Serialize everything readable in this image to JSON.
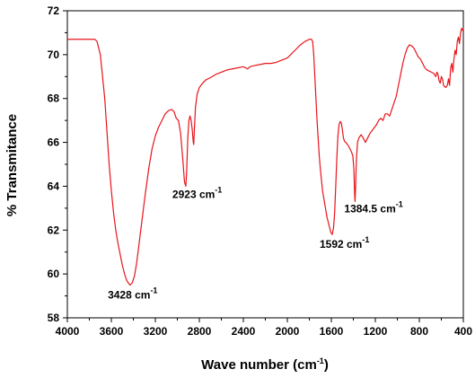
{
  "chart_data": {
    "type": "line",
    "xlabel": "Wave number (cm",
    "xlabel_sup": "-1",
    "xlabel_close": ")",
    "ylabel": "% Transmitance",
    "xlim": [
      4000,
      400
    ],
    "ylim": [
      58,
      72
    ],
    "x_ticks": [
      "4000",
      "3600",
      "3200",
      "2800",
      "2400",
      "2000",
      "1600",
      "1200",
      "800",
      "400"
    ],
    "y_ticks": [
      "58",
      "60",
      "62",
      "64",
      "66",
      "68",
      "70",
      "72"
    ],
    "series": [
      {
        "color": "#e8141b",
        "points": [
          [
            4000,
            70.7
          ],
          [
            3900,
            70.7
          ],
          [
            3800,
            70.7
          ],
          [
            3750,
            70.7
          ],
          [
            3730,
            70.6
          ],
          [
            3700,
            70.0
          ],
          [
            3680,
            69.0
          ],
          [
            3660,
            68.0
          ],
          [
            3640,
            66.5
          ],
          [
            3620,
            65.0
          ],
          [
            3600,
            63.8
          ],
          [
            3580,
            62.8
          ],
          [
            3560,
            62.0
          ],
          [
            3540,
            61.4
          ],
          [
            3520,
            60.9
          ],
          [
            3500,
            60.4
          ],
          [
            3480,
            60.0
          ],
          [
            3460,
            59.7
          ],
          [
            3440,
            59.55
          ],
          [
            3428,
            59.5
          ],
          [
            3410,
            59.6
          ],
          [
            3390,
            59.9
          ],
          [
            3370,
            60.5
          ],
          [
            3350,
            61.3
          ],
          [
            3320,
            62.5
          ],
          [
            3290,
            63.7
          ],
          [
            3260,
            64.8
          ],
          [
            3230,
            65.7
          ],
          [
            3200,
            66.3
          ],
          [
            3170,
            66.7
          ],
          [
            3140,
            67.0
          ],
          [
            3110,
            67.3
          ],
          [
            3080,
            67.45
          ],
          [
            3050,
            67.5
          ],
          [
            3030,
            67.4
          ],
          [
            3010,
            67.1
          ],
          [
            2990,
            67.0
          ],
          [
            2970,
            66.4
          ],
          [
            2950,
            65.2
          ],
          [
            2935,
            64.2
          ],
          [
            2923,
            64.0
          ],
          [
            2915,
            64.7
          ],
          [
            2905,
            66.2
          ],
          [
            2895,
            67.0
          ],
          [
            2885,
            67.2
          ],
          [
            2875,
            67.0
          ],
          [
            2865,
            66.6
          ],
          [
            2855,
            66.0
          ],
          [
            2851,
            65.9
          ],
          [
            2845,
            66.6
          ],
          [
            2835,
            67.6
          ],
          [
            2820,
            68.2
          ],
          [
            2800,
            68.5
          ],
          [
            2770,
            68.7
          ],
          [
            2740,
            68.85
          ],
          [
            2700,
            68.95
          ],
          [
            2650,
            69.1
          ],
          [
            2600,
            69.2
          ],
          [
            2550,
            69.3
          ],
          [
            2500,
            69.35
          ],
          [
            2450,
            69.4
          ],
          [
            2400,
            69.45
          ],
          [
            2360,
            69.35
          ],
          [
            2340,
            69.45
          ],
          [
            2300,
            69.5
          ],
          [
            2250,
            69.55
          ],
          [
            2200,
            69.6
          ],
          [
            2150,
            69.6
          ],
          [
            2100,
            69.65
          ],
          [
            2050,
            69.75
          ],
          [
            2000,
            69.85
          ],
          [
            1960,
            70.05
          ],
          [
            1920,
            70.25
          ],
          [
            1880,
            70.45
          ],
          [
            1840,
            70.6
          ],
          [
            1800,
            70.7
          ],
          [
            1780,
            70.7
          ],
          [
            1770,
            70.6
          ],
          [
            1760,
            70.0
          ],
          [
            1750,
            69.0
          ],
          [
            1740,
            68.0
          ],
          [
            1730,
            67.0
          ],
          [
            1720,
            66.2
          ],
          [
            1710,
            65.4
          ],
          [
            1700,
            64.8
          ],
          [
            1690,
            64.3
          ],
          [
            1680,
            63.8
          ],
          [
            1660,
            63.2
          ],
          [
            1640,
            62.6
          ],
          [
            1620,
            62.2
          ],
          [
            1605,
            61.9
          ],
          [
            1592,
            61.8
          ],
          [
            1580,
            62.1
          ],
          [
            1570,
            62.8
          ],
          [
            1560,
            64.0
          ],
          [
            1550,
            65.3
          ],
          [
            1540,
            66.3
          ],
          [
            1530,
            66.8
          ],
          [
            1520,
            66.95
          ],
          [
            1510,
            66.9
          ],
          [
            1500,
            66.6
          ],
          [
            1490,
            66.2
          ],
          [
            1480,
            66.05
          ],
          [
            1460,
            65.95
          ],
          [
            1440,
            65.8
          ],
          [
            1420,
            65.6
          ],
          [
            1405,
            65.4
          ],
          [
            1395,
            64.8
          ],
          [
            1388,
            63.6
          ],
          [
            1384.5,
            63.3
          ],
          [
            1380,
            63.9
          ],
          [
            1372,
            65.2
          ],
          [
            1362,
            66.0
          ],
          [
            1350,
            66.2
          ],
          [
            1330,
            66.35
          ],
          [
            1310,
            66.2
          ],
          [
            1290,
            66.0
          ],
          [
            1270,
            66.2
          ],
          [
            1250,
            66.4
          ],
          [
            1220,
            66.6
          ],
          [
            1190,
            66.8
          ],
          [
            1170,
            67.0
          ],
          [
            1150,
            67.1
          ],
          [
            1130,
            67.0
          ],
          [
            1110,
            67.3
          ],
          [
            1090,
            67.3
          ],
          [
            1070,
            67.2
          ],
          [
            1050,
            67.5
          ],
          [
            1030,
            67.8
          ],
          [
            1010,
            68.1
          ],
          [
            990,
            68.6
          ],
          [
            970,
            69.1
          ],
          [
            950,
            69.6
          ],
          [
            930,
            70.0
          ],
          [
            910,
            70.3
          ],
          [
            890,
            70.45
          ],
          [
            870,
            70.4
          ],
          [
            850,
            70.3
          ],
          [
            830,
            70.1
          ],
          [
            810,
            69.9
          ],
          [
            790,
            69.8
          ],
          [
            770,
            69.6
          ],
          [
            750,
            69.4
          ],
          [
            730,
            69.3
          ],
          [
            710,
            69.25
          ],
          [
            690,
            69.2
          ],
          [
            670,
            69.15
          ],
          [
            650,
            69.0
          ],
          [
            640,
            69.2
          ],
          [
            630,
            69.1
          ],
          [
            620,
            68.8
          ],
          [
            610,
            68.7
          ],
          [
            600,
            69.0
          ],
          [
            590,
            68.9
          ],
          [
            580,
            68.6
          ],
          [
            570,
            68.55
          ],
          [
            560,
            68.5
          ],
          [
            545,
            68.6
          ],
          [
            535,
            68.9
          ],
          [
            525,
            68.6
          ],
          [
            515,
            69.4
          ],
          [
            505,
            69.6
          ],
          [
            495,
            69.2
          ],
          [
            485,
            69.8
          ],
          [
            475,
            70.2
          ],
          [
            465,
            70.0
          ],
          [
            455,
            70.6
          ],
          [
            445,
            70.8
          ],
          [
            435,
            70.5
          ],
          [
            425,
            71.0
          ],
          [
            415,
            71.2
          ],
          [
            405,
            71.1
          ],
          [
            400,
            71.2
          ]
        ]
      }
    ],
    "annotations": [
      {
        "x": 3428,
        "y": 59.5,
        "label": "3428 cm",
        "sup": "-1",
        "anchor": "start",
        "dx": -25,
        "dy": 15
      },
      {
        "x": 2923,
        "y": 64.0,
        "label": "2923 cm",
        "sup": "-1",
        "anchor": "start",
        "dx": -15,
        "dy": 13
      },
      {
        "x": 1592,
        "y": 61.8,
        "label": "1592 cm",
        "sup": "-1",
        "anchor": "start",
        "dx": -14,
        "dy": 15
      },
      {
        "x": 1384.5,
        "y": 63.3,
        "label": "1384.5 cm",
        "sup": "-1",
        "anchor": "start",
        "dx": -12,
        "dy": 12
      }
    ],
    "grid": false,
    "legend": "none"
  }
}
